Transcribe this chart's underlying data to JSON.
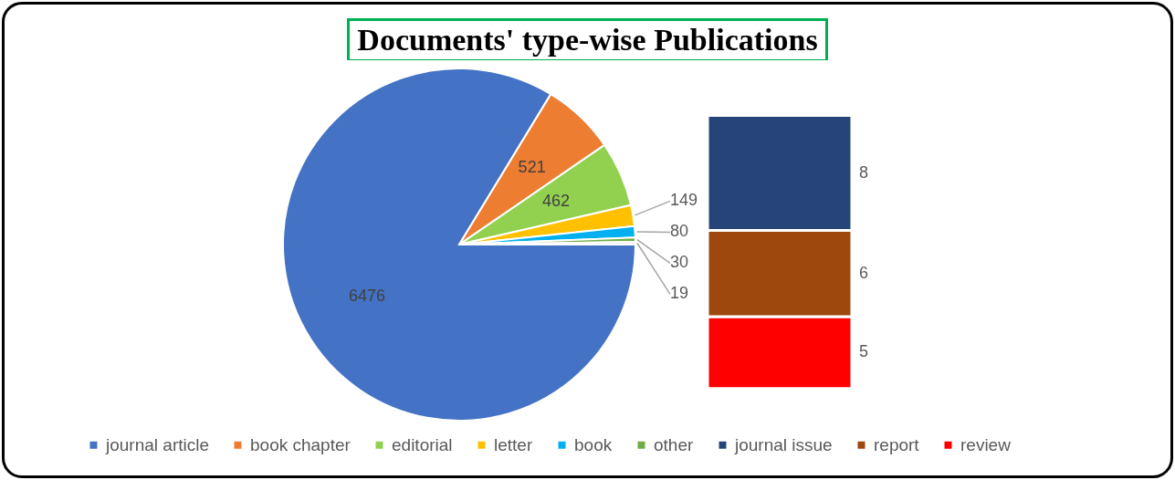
{
  "chart_data": [
    {
      "type": "pie",
      "title": "Documents' type-wise Publications",
      "categories": [
        "journal article",
        "book chapter",
        "editorial",
        "letter",
        "book",
        "other",
        null
      ],
      "values": [
        6476,
        521,
        462,
        149,
        80,
        30,
        19
      ],
      "colors": [
        "#4472c4",
        "#ed7d31",
        "#92d050",
        "#ffc000",
        "#00b0f0",
        "#70ad47",
        "#e7e6e6"
      ],
      "data_labels": true,
      "legend": "bottom"
    },
    {
      "type": "bar",
      "stacked": true,
      "categories": [
        null
      ],
      "series": [
        {
          "name": "review",
          "color": "#ff0000",
          "values": [
            5
          ]
        },
        {
          "name": "report",
          "color": "#9e480e",
          "values": [
            6
          ]
        },
        {
          "name": "journal issue",
          "color": "#264478",
          "values": [
            8
          ]
        }
      ],
      "data_labels": true,
      "legend": "bottom"
    }
  ]
}
